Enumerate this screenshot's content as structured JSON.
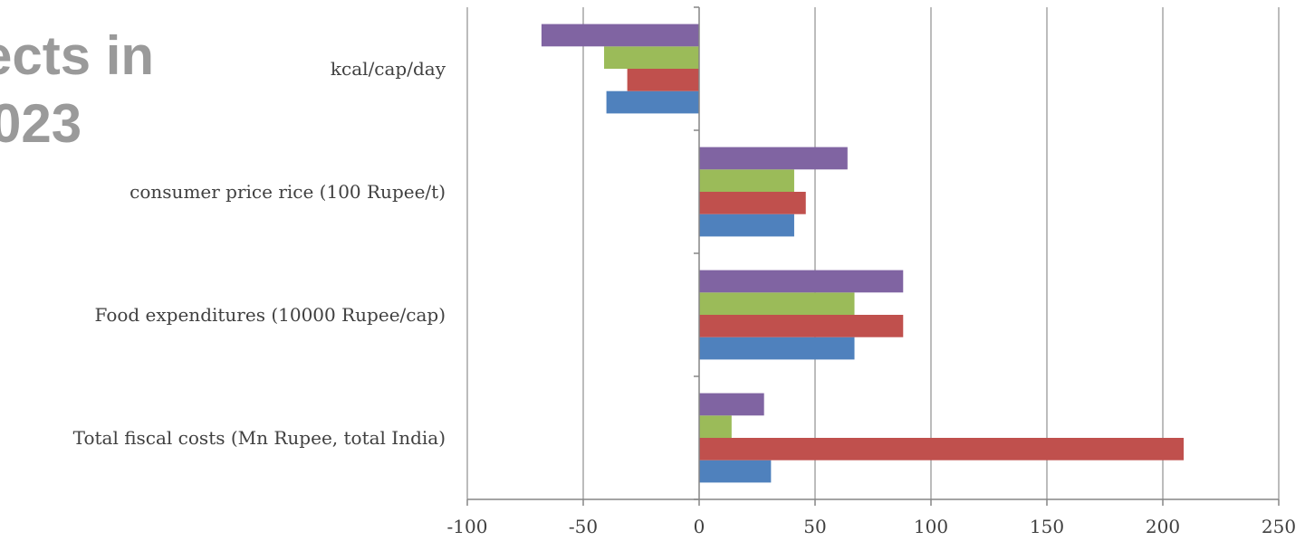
{
  "background_title": {
    "line1": "ects in",
    "line2": "023"
  },
  "chart_data": {
    "type": "bar",
    "orientation": "horizontal",
    "categories": [
      "Total fiscal costs (Mn Rupee, total India)",
      "Food expenditures (10000 Rupee/cap)",
      "consumer price rice (100 Rupee/t)",
      "kcal/cap/day"
    ],
    "series": [
      {
        "color": "#4f81bd",
        "values": [
          31,
          67,
          41,
          -40
        ]
      },
      {
        "color": "#c0504d",
        "values": [
          209,
          88,
          46,
          -31
        ]
      },
      {
        "color": "#9bbb59",
        "values": [
          14,
          67,
          41,
          -41
        ]
      },
      {
        "color": "#8064a2",
        "values": [
          28,
          88,
          64,
          -68
        ]
      }
    ],
    "xlim": [
      -100,
      250
    ],
    "xticks": [
      -100,
      -50,
      0,
      50,
      100,
      150,
      200,
      250
    ],
    "xtick_labels": [
      "-100",
      "-50",
      "0",
      "50",
      "100",
      "150",
      "200",
      "250"
    ],
    "grid": "vertical",
    "legend": "none"
  }
}
